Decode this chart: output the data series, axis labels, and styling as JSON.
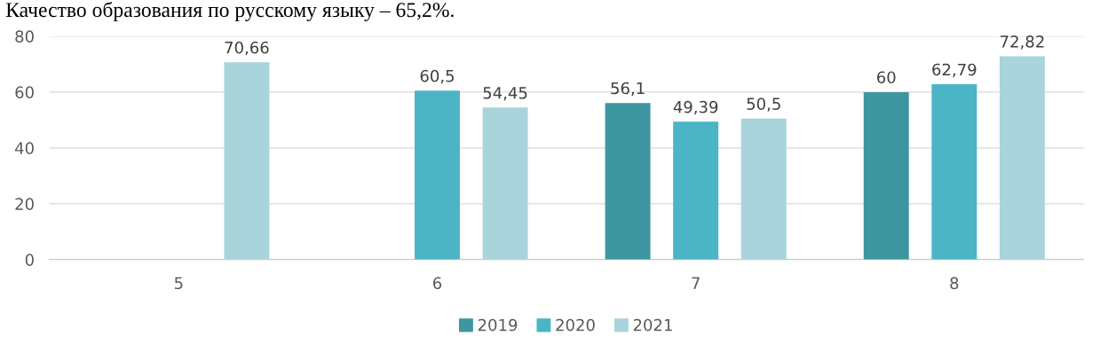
{
  "chart_data": {
    "type": "bar",
    "title": "Качество образования по русскому языку – 65,2%.",
    "categories": [
      "5",
      "6",
      "7",
      "8"
    ],
    "series": [
      {
        "name": "2019",
        "color": "#3d96a0",
        "values": [
          null,
          null,
          56.1,
          60
        ],
        "value_labels": [
          null,
          null,
          "56,1",
          "60"
        ]
      },
      {
        "name": "2020",
        "color": "#4bb5c6",
        "values": [
          null,
          60.5,
          49.39,
          62.79
        ],
        "value_labels": [
          null,
          "60,5",
          "49,39",
          "62,79"
        ]
      },
      {
        "name": "2021",
        "color": "#a9d4db",
        "values": [
          70.66,
          54.45,
          50.5,
          72.82
        ],
        "value_labels": [
          "70,66",
          "54,45",
          "50,5",
          "72,82"
        ]
      }
    ],
    "ylim": [
      0,
      80
    ],
    "yticks": [
      0,
      20,
      40,
      60,
      80
    ],
    "grid": "y",
    "legend": "bottom"
  }
}
